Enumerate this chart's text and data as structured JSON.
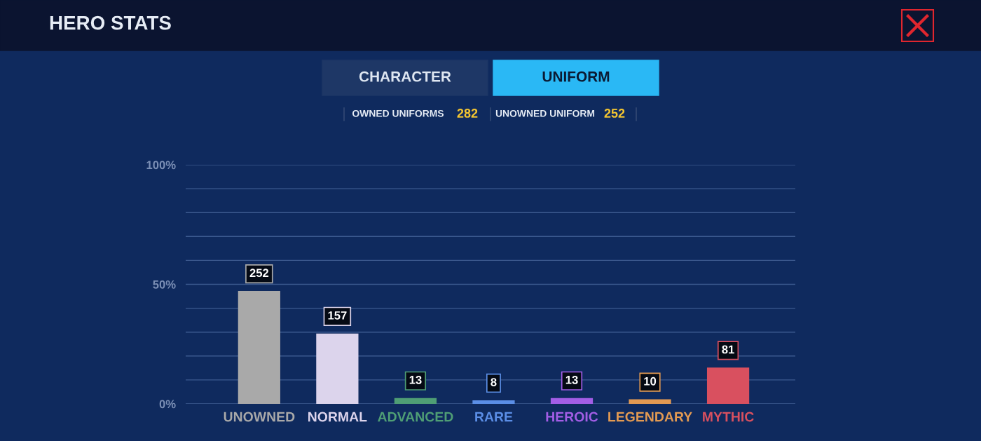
{
  "chart_data": {
    "type": "bar",
    "title": "HERO STATS",
    "annotations": [
      "CHARACTER",
      "UNIFORM",
      "OWNED UNIFORMS",
      "282",
      "UNOWNED UNIFORM",
      "252"
    ],
    "categories": [
      "UNOWNED",
      "NORMAL",
      "ADVANCED",
      "RARE",
      "HEROIC",
      "LEGENDARY",
      "MYTHIC"
    ],
    "values": [
      252,
      157,
      13,
      8,
      13,
      10,
      81
    ],
    "colors": [
      "#a9a9a9",
      "#dcd4ec",
      "#4f9e75",
      "#5b8ee6",
      "#a35ee6",
      "#e39a52",
      "#d9505f"
    ],
    "data_labels": true,
    "ylim": [
      0,
      534
    ],
    "y2lim": [
      0,
      100
    ],
    "y2ticks": [
      {
        "value": 0,
        "label": "0%"
      },
      {
        "value": 10,
        "label": null
      },
      {
        "value": 20,
        "label": null
      },
      {
        "value": 30,
        "label": null
      },
      {
        "value": 40,
        "label": null
      },
      {
        "value": 50,
        "label": "50%"
      },
      {
        "value": 60,
        "label": null
      },
      {
        "value": 70,
        "label": null
      },
      {
        "value": 80,
        "label": null
      },
      {
        "value": 90,
        "label": null
      },
      {
        "value": 100,
        "label": "100%"
      }
    ],
    "grid": "y",
    "legend": false
  }
}
